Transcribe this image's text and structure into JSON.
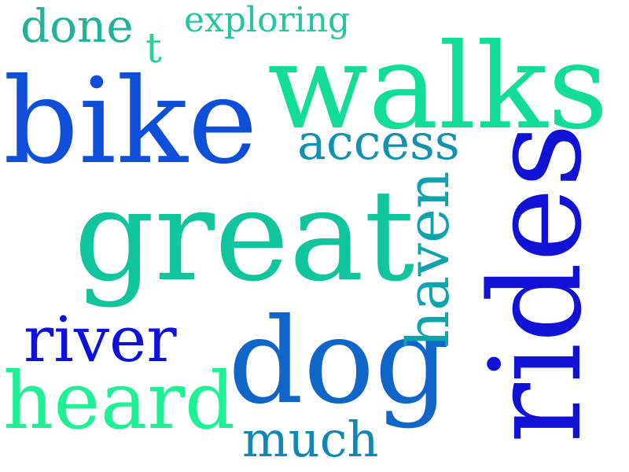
{
  "words": [
    {
      "text": "done",
      "color": "#20b29a"
    },
    {
      "text": "t",
      "color": "#27d19a"
    },
    {
      "text": "exploring",
      "color": "#27c4a4"
    },
    {
      "text": "walks",
      "color": "#12dd95"
    },
    {
      "text": "bike",
      "color": "#0d4fd8"
    },
    {
      "text": "access",
      "color": "#1192b2"
    },
    {
      "text": "great",
      "color": "#10c49c"
    },
    {
      "text": "river",
      "color": "#1010dd"
    },
    {
      "text": "heard",
      "color": "#1ef095"
    },
    {
      "text": "dog",
      "color": "#0f66c8"
    },
    {
      "text": "much",
      "color": "#1386b8"
    },
    {
      "text": "haven",
      "color": "#0fa4ad"
    },
    {
      "text": "rides",
      "color": "#1212d6"
    }
  ]
}
